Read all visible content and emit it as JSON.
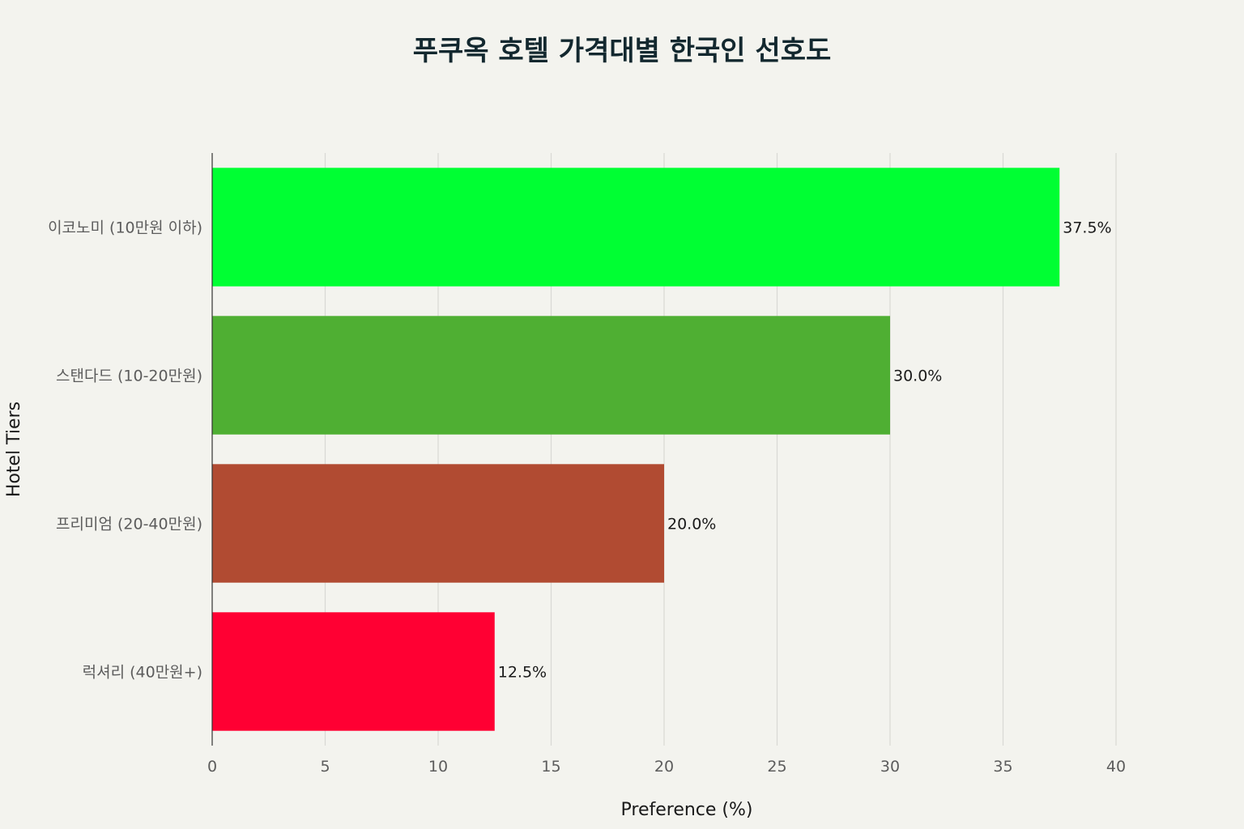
{
  "chart_data": {
    "type": "bar",
    "orientation": "horizontal",
    "title": "푸쿠옥 호텔 가격대별 한국인 선호도",
    "xlabel": "Preference (%)",
    "ylabel": "Hotel Tiers",
    "xlim": [
      0,
      40
    ],
    "xticks": [
      0,
      5,
      10,
      15,
      20,
      25,
      30,
      35,
      40
    ],
    "grid": true,
    "legend": "none",
    "categories": [
      "이코노미 (10만원 이하)",
      "스탠다드 (10-20만원)",
      "프리미엄 (20-40만원)",
      "럭셔리 (40만원+)"
    ],
    "values": [
      37.5,
      30.0,
      20.0,
      12.5
    ],
    "data_labels": [
      "37.5%",
      "30.0%",
      "20.0%",
      "12.5%"
    ],
    "colors": [
      "#00ff33",
      "#4faf33",
      "#b14b32",
      "#ff0033"
    ]
  }
}
